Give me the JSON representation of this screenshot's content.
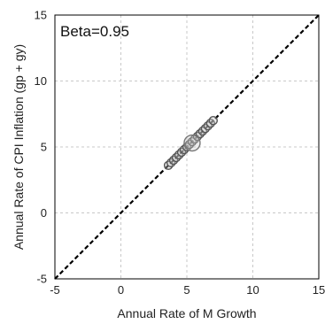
{
  "chart_data": {
    "type": "scatter",
    "title": "",
    "annotation": "Beta=0.95",
    "xlabel": "Annual Rate of M Growth",
    "ylabel": "Annual Rate of CPI Inflation (gp + gy)",
    "xlim": [
      -5,
      15
    ],
    "ylim": [
      -5,
      15
    ],
    "xticks": [
      -5,
      0,
      5,
      10,
      15
    ],
    "yticks": [
      -5,
      0,
      5,
      10,
      15
    ],
    "grid": true,
    "reference_line": {
      "style": "dashed",
      "color": "#000000",
      "from": [
        -5,
        -5
      ],
      "to": [
        15,
        15
      ]
    },
    "series": [
      {
        "marker": "circle-open",
        "color": "#555555",
        "x": [
          3.6,
          3.8,
          4.0,
          4.2,
          4.4,
          4.6,
          4.8,
          5.0,
          5.2,
          5.4,
          5.6,
          5.8,
          6.0,
          6.2,
          6.4,
          6.6,
          6.8,
          7.0
        ],
        "y": [
          3.6,
          3.8,
          4.0,
          4.2,
          4.4,
          4.6,
          4.8,
          5.0,
          5.2,
          5.4,
          5.6,
          5.8,
          6.0,
          6.2,
          6.4,
          6.6,
          6.8,
          7.0
        ]
      },
      {
        "marker": "circle-open-large",
        "color": "#777777",
        "x": [
          5.4
        ],
        "y": [
          5.3
        ]
      }
    ]
  }
}
